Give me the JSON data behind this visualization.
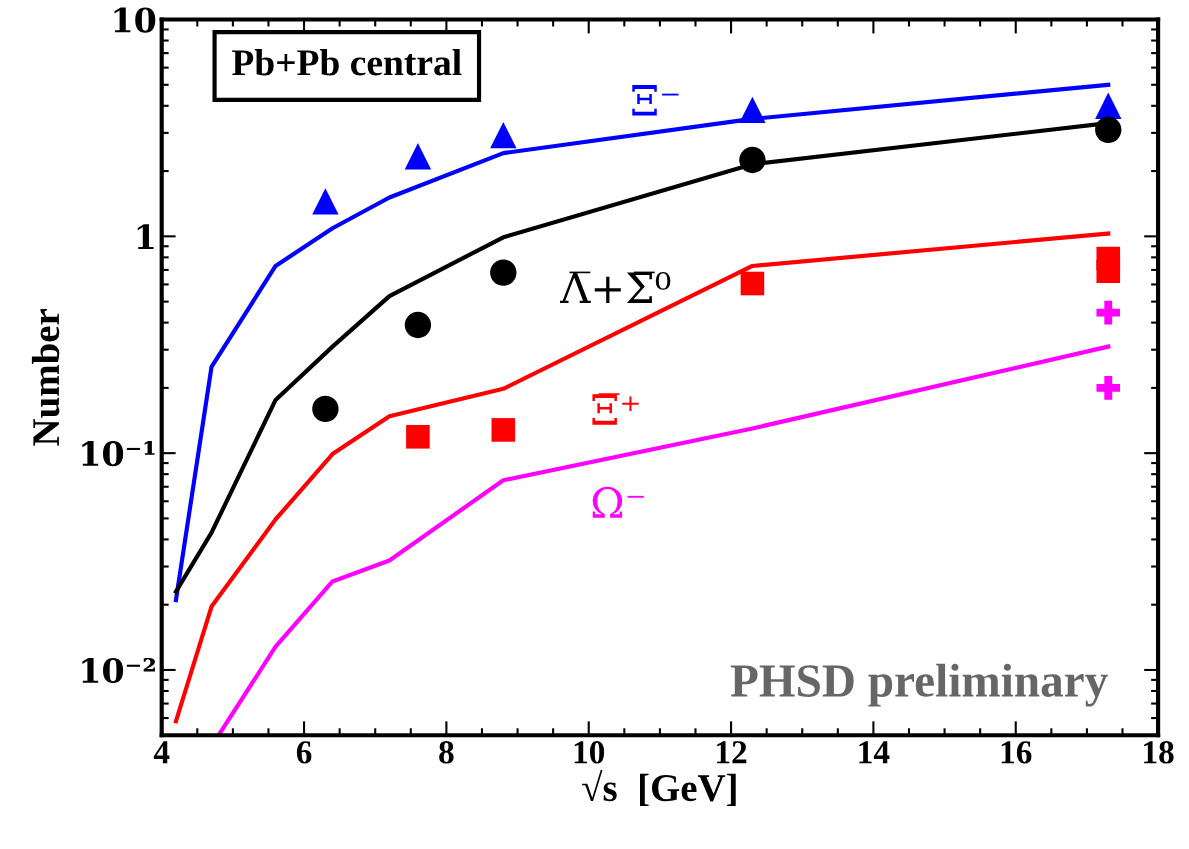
{
  "chart_data": {
    "type": "line",
    "xlabel": "√s  [GeV]",
    "ylabel": "Number",
    "log": "y",
    "xlim": [
      4,
      18
    ],
    "ylim": [
      0.005,
      10
    ],
    "xticks": [
      4,
      6,
      8,
      10,
      12,
      14,
      16,
      18
    ],
    "yticks": [
      {
        "value": 0.01,
        "label": "10⁻²"
      },
      {
        "value": 0.1,
        "label": "10⁻¹"
      },
      1,
      10
    ],
    "grid": false,
    "legend": false,
    "annotations": [
      "Pb+Pb central",
      "PHSD preliminary"
    ],
    "series": [
      {
        "name": "Ξ⁻",
        "color": "#0000ff",
        "x": [
          4.2,
          4.7,
          5.6,
          6.4,
          7.2,
          8.8,
          12.3,
          17.3
        ],
        "values": [
          0.021,
          0.25,
          0.73,
          1.09,
          1.51,
          2.42,
          3.48,
          5.0
        ]
      },
      {
        "name": "Λ̅+Σ̅⁰",
        "color": "#000000",
        "x": [
          4.2,
          4.7,
          5.6,
          6.4,
          7.2,
          8.8,
          12.3,
          17.3
        ],
        "values": [
          0.023,
          0.043,
          0.176,
          0.31,
          0.53,
          0.99,
          2.15,
          3.33
        ]
      },
      {
        "name": "Ξ̅⁺",
        "color": "#ff0000",
        "x": [
          4.2,
          4.7,
          5.6,
          6.4,
          7.2,
          8.8,
          12.3,
          17.3
        ],
        "values": [
          0.0058,
          0.0196,
          0.0495,
          0.099,
          0.148,
          0.198,
          0.73,
          1.03
        ]
      },
      {
        "name": "Ω⁻",
        "color": "#ff00ff",
        "x": [
          4.8,
          5.6,
          6.4,
          7.2,
          8.8,
          12.3,
          17.3
        ],
        "values": [
          0.005,
          0.0128,
          0.0256,
          0.032,
          0.075,
          0.13,
          0.31
        ]
      },
      {
        "color": "#0000ff",
        "type": "scatter",
        "marker": "triangle",
        "x": [
          6.3,
          7.6,
          8.8,
          12.3,
          17.3
        ],
        "values": [
          1.45,
          2.34,
          2.93,
          3.83,
          4.0
        ]
      },
      {
        "color": "#000000",
        "type": "scatter",
        "marker": "circle",
        "x": [
          6.3,
          7.6,
          8.8,
          12.3,
          17.3
        ],
        "values": [
          0.16,
          0.39,
          0.68,
          2.25,
          3.1
        ]
      },
      {
        "color": "#ff0000",
        "type": "scatter",
        "marker": "square",
        "x": [
          7.6,
          8.8,
          12.3,
          17.3,
          17.3
        ],
        "values": [
          0.119,
          0.128,
          0.606,
          0.79,
          0.69
        ]
      },
      {
        "color": "#ff00ff",
        "type": "scatter",
        "marker": "cross",
        "x": [
          17.3,
          17.3
        ],
        "values": [
          0.445,
          0.2
        ]
      }
    ]
  }
}
